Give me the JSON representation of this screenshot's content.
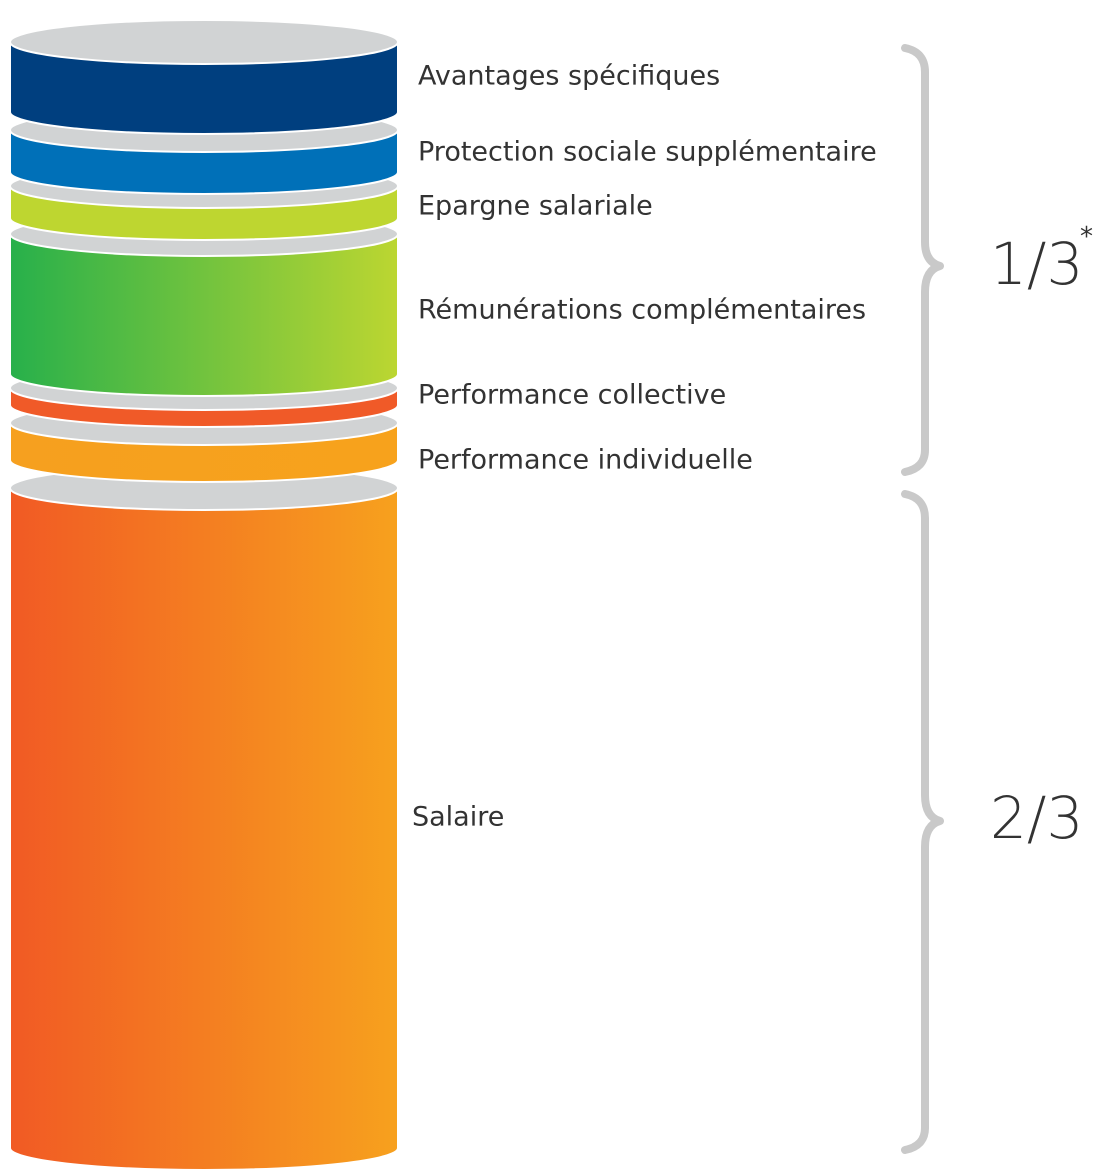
{
  "segments": [
    {
      "label": "Avantages spécifiques"
    },
    {
      "label": "Protection sociale supplémentaire"
    },
    {
      "label": "Epargne salariale"
    },
    {
      "label": "Rémunérations complémentaires"
    },
    {
      "label": "Performance collective"
    },
    {
      "label": "Performance individuelle"
    },
    {
      "label": "Salaire"
    }
  ],
  "braces": [
    {
      "label": "1/3",
      "note": "*"
    },
    {
      "label": "2/3"
    }
  ]
}
